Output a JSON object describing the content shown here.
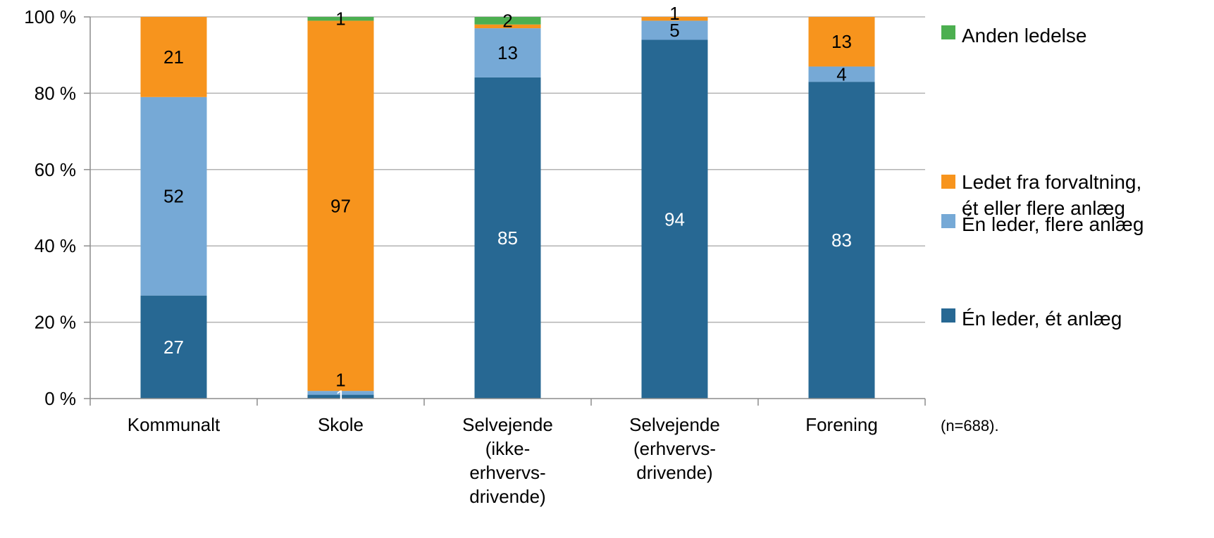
{
  "chart_data": {
    "type": "bar",
    "stacked": true,
    "percent": true,
    "categories": [
      [
        "Kommunalt"
      ],
      [
        "Skole"
      ],
      [
        "Selvejende",
        "(ikke-",
        "erhvervs-",
        "drivende)"
      ],
      [
        "Selvejende",
        "(erhvervs-",
        "drivende)"
      ],
      [
        "Forening"
      ]
    ],
    "series": [
      {
        "name": "Én leder, ét anlæg",
        "color": "#276893",
        "label_color": "#ffffff",
        "values": [
          27,
          1,
          85,
          94,
          83
        ],
        "labels": [
          "27",
          "1",
          "85",
          "94",
          "83"
        ]
      },
      {
        "name": "Én leder, flere anlæg",
        "color": "#76a9d6",
        "label_color": "#000000",
        "values": [
          52,
          1,
          13,
          5,
          4
        ],
        "labels": [
          "52",
          "1",
          "13",
          "5",
          "4"
        ]
      },
      {
        "name": "Ledet fra forvaltning, ét eller flere anlæg",
        "legend_lines": [
          "Ledet fra forvaltning,",
          "ét eller flere anlæg"
        ],
        "color": "#f7941d",
        "label_color": "#000000",
        "values": [
          21,
          97,
          1,
          1,
          13
        ],
        "labels": [
          "21",
          "97",
          "",
          "1",
          "13"
        ]
      },
      {
        "name": "Anden ledelse",
        "color": "#4caf50",
        "label_color": "#000000",
        "values": [
          0,
          1,
          2,
          0,
          0
        ],
        "labels": [
          "",
          "1",
          "2",
          "",
          ""
        ]
      }
    ],
    "yticks": [
      "0 %",
      "20 %",
      "40 %",
      "60 %",
      "80 %",
      "100 %"
    ],
    "ylim": [
      0,
      100
    ],
    "grid": true,
    "legend_position": "right",
    "note": "(n=688)."
  }
}
